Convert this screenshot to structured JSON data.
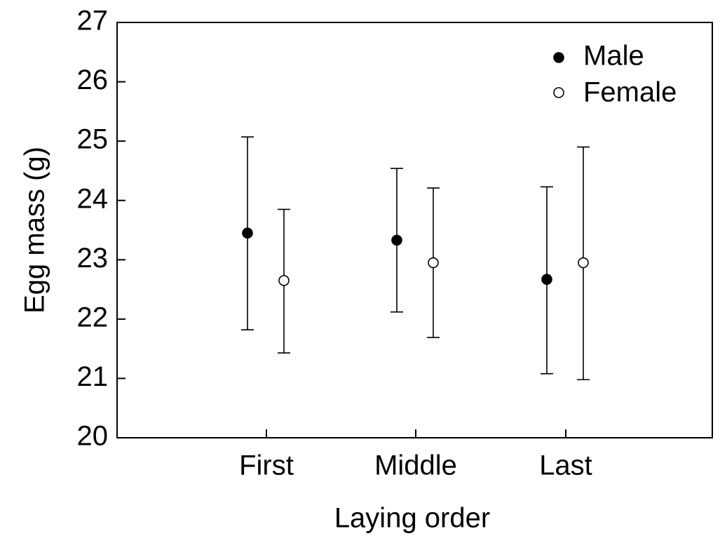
{
  "chart_data": {
    "type": "scatter",
    "title": "",
    "xlabel": "Laying order",
    "ylabel": "Egg mass (g)",
    "categories": [
      "First",
      "Middle",
      "Last"
    ],
    "ylim": [
      20,
      27
    ],
    "yticks": [
      "20",
      "21",
      "22",
      "23",
      "24",
      "25",
      "26",
      "27"
    ],
    "grid": false,
    "legend_position": "top-right",
    "error_bars": true,
    "series": [
      {
        "name": "Male",
        "marker": "filled-circle",
        "color": "#000000",
        "values": [
          23.45,
          23.33,
          22.67
        ],
        "error_low": [
          21.82,
          22.12,
          21.08
        ],
        "error_high": [
          25.07,
          24.54,
          24.23
        ]
      },
      {
        "name": "Female",
        "marker": "open-circle",
        "color": "#000000",
        "values": [
          22.65,
          22.95,
          22.95
        ],
        "error_low": [
          21.43,
          21.69,
          20.98
        ],
        "error_high": [
          23.85,
          24.21,
          24.9
        ]
      }
    ]
  }
}
